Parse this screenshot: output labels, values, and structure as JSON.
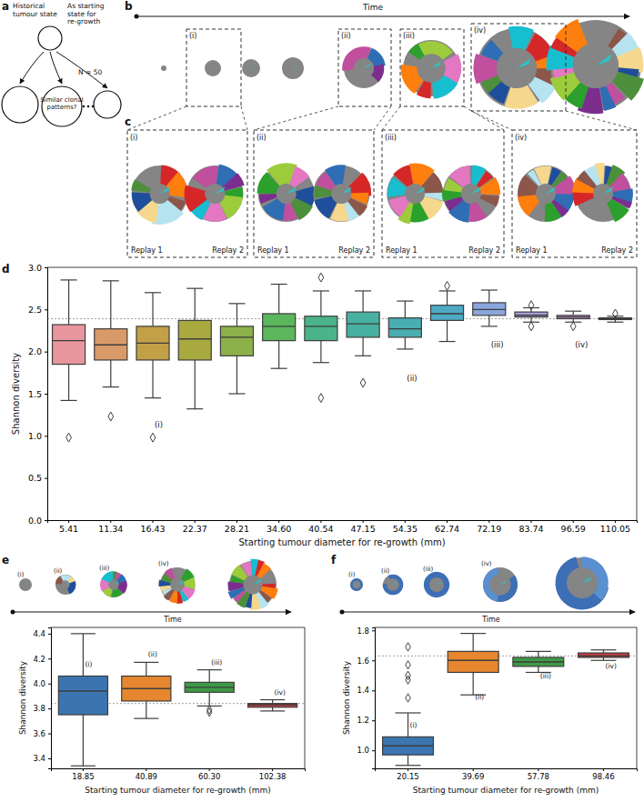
{
  "figure": {
    "panel_labels": [
      "a",
      "b",
      "c",
      "d",
      "e",
      "f"
    ],
    "schematic_texts": [
      "Historical tumour state",
      "As starting state for re-growth",
      "Similar clonal patterns?",
      "N = 50"
    ],
    "time_label": "Time",
    "stage_labels": [
      "(i)",
      "(ii)",
      "(iii)",
      "(iv)"
    ],
    "replay_labels": [
      "Replay 1",
      "Replay 2"
    ]
  },
  "chart_data": [
    {
      "type": "box",
      "xlabel": "Starting tumour diameter for re-growth (mm)",
      "ylabel": "Shannon diversity",
      "categories": [
        "5.41",
        "11.34",
        "16.43",
        "22.37",
        "28.21",
        "34.60",
        "40.54",
        "47.15",
        "54.35",
        "62.74",
        "72.19",
        "83.74",
        "96.59",
        "110.05"
      ],
      "boxes": [
        {
          "whisker_low": 1.42,
          "q1": 1.85,
          "median": 2.13,
          "q3": 2.32,
          "whisker_high": 2.85,
          "outliers": [
            0.98
          ]
        },
        {
          "whisker_low": 1.58,
          "q1": 1.9,
          "median": 2.08,
          "q3": 2.27,
          "whisker_high": 2.84,
          "outliers": [
            1.23
          ]
        },
        {
          "whisker_low": 1.45,
          "q1": 1.9,
          "median": 2.1,
          "q3": 2.3,
          "whisker_high": 2.7,
          "outliers": [
            0.98
          ]
        },
        {
          "whisker_low": 1.32,
          "q1": 1.9,
          "median": 2.15,
          "q3": 2.37,
          "whisker_high": 2.75,
          "outliers": []
        },
        {
          "whisker_low": 1.5,
          "q1": 1.95,
          "median": 2.17,
          "q3": 2.3,
          "whisker_high": 2.57,
          "outliers": []
        },
        {
          "whisker_low": 1.8,
          "q1": 2.13,
          "median": 2.3,
          "q3": 2.45,
          "whisker_high": 2.8,
          "outliers": []
        },
        {
          "whisker_low": 1.87,
          "q1": 2.13,
          "median": 2.3,
          "q3": 2.42,
          "whisker_high": 2.72,
          "outliers": [
            1.45,
            2.88
          ]
        },
        {
          "whisker_low": 1.95,
          "q1": 2.17,
          "median": 2.33,
          "q3": 2.47,
          "whisker_high": 2.72,
          "outliers": [
            1.63
          ]
        },
        {
          "whisker_low": 2.03,
          "q1": 2.17,
          "median": 2.27,
          "q3": 2.4,
          "whisker_high": 2.6,
          "outliers": []
        },
        {
          "whisker_low": 2.12,
          "q1": 2.37,
          "median": 2.45,
          "q3": 2.55,
          "whisker_high": 2.72,
          "outliers": [
            2.78
          ]
        },
        {
          "whisker_low": 2.3,
          "q1": 2.43,
          "median": 2.5,
          "q3": 2.58,
          "whisker_high": 2.73,
          "outliers": []
        },
        {
          "whisker_low": 2.35,
          "q1": 2.41,
          "median": 2.43,
          "q3": 2.47,
          "whisker_high": 2.52,
          "outliers": [
            2.3,
            2.55
          ]
        },
        {
          "whisker_low": 2.35,
          "q1": 2.39,
          "median": 2.41,
          "q3": 2.43,
          "whisker_high": 2.48,
          "outliers": [
            2.3
          ]
        },
        {
          "whisker_low": 2.35,
          "q1": 2.38,
          "median": 2.39,
          "q3": 2.4,
          "whisker_high": 2.42,
          "outliers": [
            2.45
          ]
        }
      ],
      "colors": [
        "#e8969e",
        "#d99a6a",
        "#c2a048",
        "#a8a93e",
        "#8db14a",
        "#5cb65c",
        "#4ab38a",
        "#48b0a0",
        "#49adb1",
        "#4eaac4",
        "#8aa6dd",
        "#aa9bdc",
        "#c898d8",
        "#e194cc"
      ],
      "reference_line": 2.39,
      "ylim": [
        0,
        3
      ],
      "yticks": [
        {
          "value": 0,
          "label": "0.0"
        },
        0.5,
        {
          "value": 1,
          "label": "1.0"
        },
        1.5,
        {
          "value": 2,
          "label": "2.0"
        },
        2.5,
        {
          "value": 3,
          "label": "3.0"
        }
      ],
      "annotations": [
        {
          "text": "(i)",
          "x": "16.43",
          "y": 1.1
        },
        {
          "text": "(ii)",
          "x": "54.35",
          "y": 1.65
        },
        {
          "text": "(iii)",
          "x": "72.19",
          "y": 2.05
        },
        {
          "text": "(iv)",
          "x": "96.59",
          "y": 2.05
        }
      ]
    },
    {
      "type": "box",
      "xlabel": "Starting tumour diameter for re-growth (mm)",
      "ylabel": "Shannon diversity",
      "categories": [
        "18.85",
        "40.89",
        "60.30",
        "102.38"
      ],
      "boxes": [
        {
          "whisker_low": 3.34,
          "q1": 3.75,
          "median": 3.94,
          "q3": 4.06,
          "whisker_high": 4.4,
          "outliers": []
        },
        {
          "whisker_low": 3.72,
          "q1": 3.86,
          "median": 3.96,
          "q3": 4.06,
          "whisker_high": 4.17,
          "outliers": []
        },
        {
          "whisker_low": 3.82,
          "q1": 3.93,
          "median": 3.97,
          "q3": 4.01,
          "whisker_high": 4.11,
          "outliers": [
            3.77,
            3.79
          ]
        },
        {
          "whisker_low": 3.78,
          "q1": 3.81,
          "median": 3.83,
          "q3": 3.84,
          "whisker_high": 3.87,
          "outliers": []
        }
      ],
      "colors": [
        "#3a75b0",
        "#e6862e",
        "#3e9a44",
        "#c03d3e"
      ],
      "reference_line": 3.84,
      "ylim": [
        3.32,
        4.45
      ],
      "yticks": [
        3.4,
        3.6,
        3.8,
        {
          "value": 4,
          "label": "4.0"
        },
        4.2,
        4.4
      ],
      "annotations": [
        {
          "text": "(i)",
          "x": "18.85",
          "y": 4.14
        },
        {
          "text": "(ii)",
          "x": "40.89",
          "y": 4.22
        },
        {
          "text": "(iii)",
          "x": "60.30",
          "y": 4.15
        },
        {
          "text": "(iv)",
          "x": "102.38",
          "y": 3.91
        }
      ]
    },
    {
      "type": "box",
      "xlabel": "Starting tumour diameter for re-growth (mm)",
      "ylabel": "Shannon diversity",
      "categories": [
        "20.15",
        "39.69",
        "57.78",
        "98.46"
      ],
      "boxes": [
        {
          "whisker_low": 0.9,
          "q1": 0.97,
          "median": 1.03,
          "q3": 1.09,
          "whisker_high": 1.25,
          "outliers": [
            1.35,
            1.47,
            1.5,
            1.57,
            1.69
          ]
        },
        {
          "whisker_low": 1.37,
          "q1": 1.52,
          "median": 1.6,
          "q3": 1.66,
          "whisker_high": 1.78,
          "outliers": []
        },
        {
          "whisker_low": 1.52,
          "q1": 1.56,
          "median": 1.59,
          "q3": 1.62,
          "whisker_high": 1.66,
          "outliers": []
        },
        {
          "whisker_low": 1.6,
          "q1": 1.62,
          "median": 1.63,
          "q3": 1.65,
          "whisker_high": 1.67,
          "outliers": []
        }
      ],
      "colors": [
        "#3a75b0",
        "#e6862e",
        "#3e9a44",
        "#c03d3e"
      ],
      "reference_line": 1.63,
      "ylim": [
        0.88,
        1.82
      ],
      "yticks": [
        {
          "value": 1,
          "label": "1.0"
        },
        1.2,
        1.4,
        1.6,
        1.8
      ],
      "annotations": [
        {
          "text": "(i)",
          "x": "20.15",
          "y": 1.15
        },
        {
          "text": "(ii)",
          "x": "39.69",
          "y": 1.34
        },
        {
          "text": "(iii)",
          "x": "57.78",
          "y": 1.48
        },
        {
          "text": "(iv)",
          "x": "98.46",
          "y": 1.55
        }
      ]
    }
  ]
}
